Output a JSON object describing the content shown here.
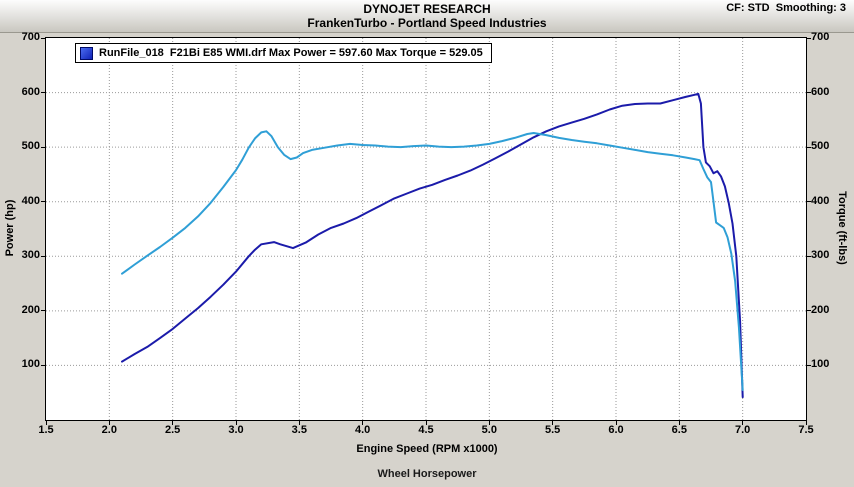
{
  "header": {
    "title": "DYNOJET RESEARCH",
    "cf_settings": "CF: STD  Smoothing: 3",
    "subtitle": "FrankenTurbo - Portland Speed Industries"
  },
  "legend": {
    "label": "RunFile_018  F21Bi E85 WMI.drf Max Power = 597.60 Max Torque = 529.05",
    "swatch_color": "#1c2fc0"
  },
  "chart_data": {
    "type": "line",
    "title": "DYNOJET RESEARCH",
    "subtitle": "FrankenTurbo - Portland Speed Industries",
    "xlabel": "Engine Speed (RPM x1000)",
    "ylabel_left": "Power (hp)",
    "ylabel_right": "Torque (ft-lbs)",
    "footer": "Wheel Horsepower",
    "xlim": [
      1.5,
      7.5
    ],
    "ylim": [
      0,
      700
    ],
    "xticks": [
      1.5,
      2.0,
      2.5,
      3.0,
      3.5,
      4.0,
      4.5,
      5.0,
      5.5,
      6.0,
      6.5,
      7.0,
      7.5
    ],
    "yticks": [
      100,
      200,
      300,
      400,
      500,
      600,
      700
    ],
    "grid": "dotted",
    "legend_position": "top-left",
    "max_power": 597.6,
    "max_torque": 529.05,
    "series": [
      {
        "name": "power-hp",
        "color": "#1b1baa",
        "points": [
          [
            2.1,
            107
          ],
          [
            2.2,
            121
          ],
          [
            2.3,
            134
          ],
          [
            2.4,
            150
          ],
          [
            2.5,
            167
          ],
          [
            2.6,
            186
          ],
          [
            2.7,
            205
          ],
          [
            2.8,
            226
          ],
          [
            2.9,
            248
          ],
          [
            3.0,
            272
          ],
          [
            3.1,
            300
          ],
          [
            3.15,
            312
          ],
          [
            3.2,
            322
          ],
          [
            3.3,
            326
          ],
          [
            3.35,
            322
          ],
          [
            3.45,
            315
          ],
          [
            3.55,
            325
          ],
          [
            3.65,
            340
          ],
          [
            3.75,
            352
          ],
          [
            3.85,
            360
          ],
          [
            3.95,
            370
          ],
          [
            4.05,
            382
          ],
          [
            4.15,
            394
          ],
          [
            4.25,
            406
          ],
          [
            4.35,
            415
          ],
          [
            4.45,
            424
          ],
          [
            4.55,
            431
          ],
          [
            4.65,
            440
          ],
          [
            4.75,
            448
          ],
          [
            4.85,
            457
          ],
          [
            4.95,
            468
          ],
          [
            5.05,
            480
          ],
          [
            5.15,
            492
          ],
          [
            5.25,
            505
          ],
          [
            5.35,
            518
          ],
          [
            5.45,
            529
          ],
          [
            5.55,
            538
          ],
          [
            5.65,
            545
          ],
          [
            5.75,
            552
          ],
          [
            5.85,
            560
          ],
          [
            5.95,
            569
          ],
          [
            6.05,
            576
          ],
          [
            6.15,
            579
          ],
          [
            6.25,
            580
          ],
          [
            6.35,
            580
          ],
          [
            6.45,
            586
          ],
          [
            6.55,
            592
          ],
          [
            6.62,
            596
          ],
          [
            6.65,
            597.6
          ],
          [
            6.67,
            580
          ],
          [
            6.69,
            500
          ],
          [
            6.71,
            472
          ],
          [
            6.74,
            465
          ],
          [
            6.77,
            452
          ],
          [
            6.8,
            456
          ],
          [
            6.83,
            446
          ],
          [
            6.86,
            428
          ],
          [
            6.89,
            398
          ],
          [
            6.92,
            360
          ],
          [
            6.95,
            300
          ],
          [
            6.98,
            180
          ],
          [
            7.0,
            42
          ]
        ]
      },
      {
        "name": "torque-ftlbs",
        "color": "#2f9fd6",
        "points": [
          [
            2.1,
            268
          ],
          [
            2.2,
            285
          ],
          [
            2.3,
            301
          ],
          [
            2.4,
            317
          ],
          [
            2.5,
            334
          ],
          [
            2.6,
            352
          ],
          [
            2.7,
            373
          ],
          [
            2.8,
            398
          ],
          [
            2.9,
            427
          ],
          [
            3.0,
            458
          ],
          [
            3.05,
            477
          ],
          [
            3.1,
            499
          ],
          [
            3.15,
            516
          ],
          [
            3.2,
            527
          ],
          [
            3.24,
            529
          ],
          [
            3.28,
            520
          ],
          [
            3.33,
            500
          ],
          [
            3.38,
            486
          ],
          [
            3.43,
            478
          ],
          [
            3.48,
            481
          ],
          [
            3.53,
            489
          ],
          [
            3.6,
            495
          ],
          [
            3.7,
            499
          ],
          [
            3.8,
            503
          ],
          [
            3.9,
            506
          ],
          [
            4.0,
            504
          ],
          [
            4.1,
            503
          ],
          [
            4.2,
            501
          ],
          [
            4.3,
            500
          ],
          [
            4.4,
            502
          ],
          [
            4.5,
            503
          ],
          [
            4.6,
            501
          ],
          [
            4.7,
            500
          ],
          [
            4.8,
            501
          ],
          [
            4.9,
            503
          ],
          [
            5.0,
            506
          ],
          [
            5.1,
            511
          ],
          [
            5.2,
            517
          ],
          [
            5.3,
            524
          ],
          [
            5.35,
            526
          ],
          [
            5.45,
            522
          ],
          [
            5.55,
            517
          ],
          [
            5.65,
            513
          ],
          [
            5.75,
            510
          ],
          [
            5.85,
            507
          ],
          [
            5.95,
            503
          ],
          [
            6.05,
            499
          ],
          [
            6.15,
            495
          ],
          [
            6.25,
            491
          ],
          [
            6.35,
            488
          ],
          [
            6.45,
            485
          ],
          [
            6.55,
            481
          ],
          [
            6.62,
            478
          ],
          [
            6.66,
            476
          ],
          [
            6.69,
            460
          ],
          [
            6.72,
            445
          ],
          [
            6.75,
            436
          ],
          [
            6.77,
            400
          ],
          [
            6.79,
            362
          ],
          [
            6.82,
            357
          ],
          [
            6.85,
            352
          ],
          [
            6.88,
            335
          ],
          [
            6.91,
            305
          ],
          [
            6.94,
            255
          ],
          [
            6.97,
            170
          ],
          [
            7.0,
            55
          ]
        ]
      }
    ]
  }
}
